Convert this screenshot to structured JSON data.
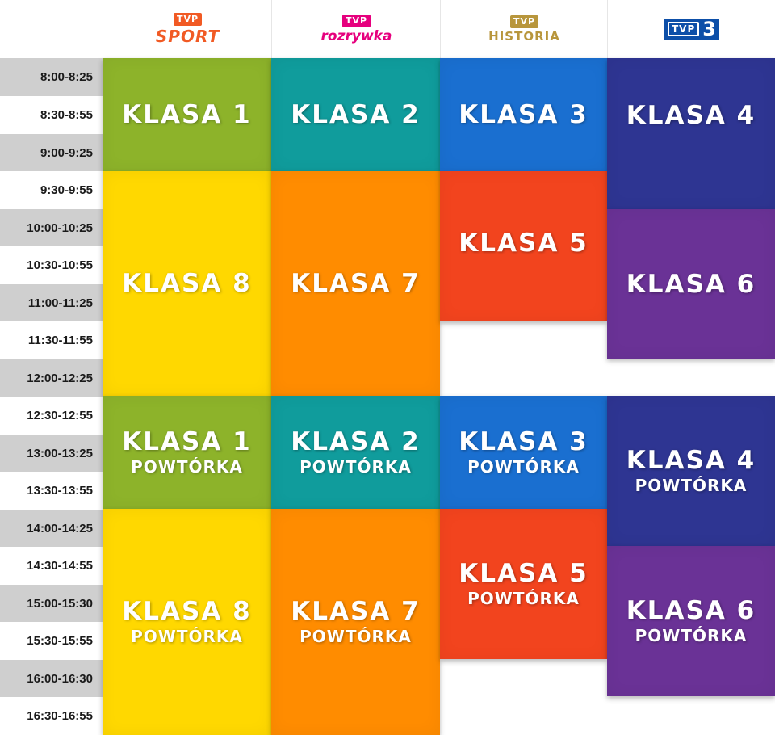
{
  "channels": {
    "sport": {
      "tvp": "TVP",
      "name": "SPORT",
      "color": "#f15a24"
    },
    "rozrywka": {
      "tvp": "TVP",
      "name": "rozrywka",
      "color": "#e6007e"
    },
    "historia": {
      "tvp": "TVP",
      "name": "HISTORIA",
      "color": "#b8963c"
    },
    "tvp3": {
      "tvp": "TVP",
      "num": "3",
      "color": "#0d4fa8"
    }
  },
  "times": [
    "8:00-8:25",
    "8:30-8:55",
    "9:00-9:25",
    "9:30-9:55",
    "10:00-10:25",
    "10:30-10:55",
    "11:00-11:25",
    "11:30-11:55",
    "12:00-12:25",
    "12:30-12:55",
    "13:00-13:25",
    "13:30-13:55",
    "14:00-14:25",
    "14:30-14:55",
    "15:00-15:30",
    "15:30-15:55",
    "16:00-16:30",
    "16:30-16:55"
  ],
  "blocks": {
    "sport_1": {
      "title": "KLASA 1",
      "color": "#8db32a"
    },
    "sport_2": {
      "title": "KLASA 8",
      "color": "#ffd800"
    },
    "sport_3": {
      "title": "KLASA 1",
      "sub": "POWTÓRKA",
      "color": "#8db32a"
    },
    "sport_4": {
      "title": "KLASA 8",
      "sub": "POWTÓRKA",
      "color": "#ffd800"
    },
    "rozrywka_1": {
      "title": "KLASA 2",
      "color": "#109c9c"
    },
    "rozrywka_2": {
      "title": "KLASA 7",
      "color": "#ff8c00"
    },
    "rozrywka_3": {
      "title": "KLASA 2",
      "sub": "POWTÓRKA",
      "color": "#109c9c"
    },
    "rozrywka_4": {
      "title": "KLASA 7",
      "sub": "POWTÓRKA",
      "color": "#ff8c00"
    },
    "historia_1": {
      "title": "KLASA 3",
      "color": "#1a6fd0"
    },
    "historia_2": {
      "title": "KLASA 5",
      "color": "#f2441e"
    },
    "historia_3": {
      "title": "KLASA 3",
      "sub": "POWTÓRKA",
      "color": "#1a6fd0"
    },
    "historia_4": {
      "title": "KLASA 5",
      "sub": "POWTÓRKA",
      "color": "#f2441e"
    },
    "tvp3_1": {
      "title": "KLASA 4",
      "color": "#2e3592"
    },
    "tvp3_2": {
      "title": "KLASA 6",
      "color": "#6a3296"
    },
    "tvp3_3": {
      "title": "KLASA 4",
      "sub": "POWTÓRKA",
      "color": "#2e3592"
    },
    "tvp3_4": {
      "title": "KLASA 6",
      "sub": "POWTÓRKA",
      "color": "#6a3296"
    }
  }
}
